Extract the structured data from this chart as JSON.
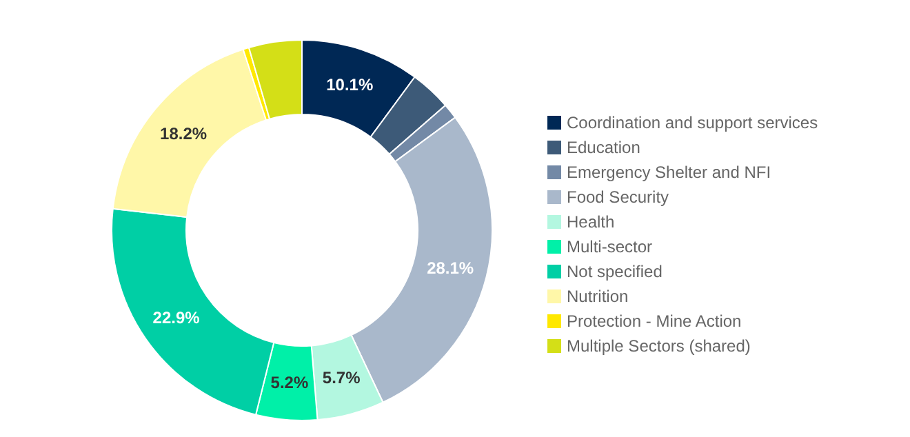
{
  "chart_data": {
    "type": "donut",
    "categories": [
      "Coordination and support services",
      "Education",
      "Emergency Shelter and NFI",
      "Food Security",
      "Health",
      "Multi-sector",
      "Not specified",
      "Nutrition",
      "Protection - Mine Action",
      "Multiple Sectors (shared)"
    ],
    "values": [
      10.1,
      3.5,
      1.3,
      28.1,
      5.7,
      5.2,
      22.9,
      18.2,
      0.5,
      4.5
    ],
    "colors": [
      "#002855",
      "#3d5a78",
      "#7389a6",
      "#a9b8cb",
      "#b3f7e0",
      "#00f0a8",
      "#00cfa5",
      "#fff7a8",
      "#ffe800",
      "#d4df17"
    ],
    "value_labels": [
      "10.1%",
      null,
      null,
      "28.1%",
      "5.7%",
      "5.2%",
      "22.9%",
      "18.2%",
      null,
      null
    ],
    "legend": "right"
  }
}
